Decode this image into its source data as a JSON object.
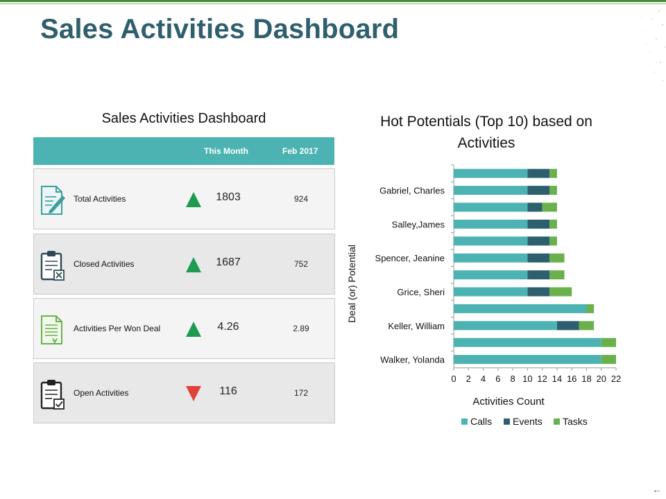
{
  "page_title": "Sales Activities Dashboard",
  "table": {
    "title": "Sales Activities Dashboard",
    "col_this_month": "This Month",
    "col_prev": "Feb 2017",
    "rows": [
      {
        "label": "Total Activities",
        "value": "1803",
        "prev": "924",
        "trend": "up",
        "icon": "document-pen-icon"
      },
      {
        "label": "Closed Activities",
        "value": "1687",
        "prev": "752",
        "trend": "up",
        "icon": "clipboard-x-icon"
      },
      {
        "label": "Activities Per Won Deal",
        "value": "4.26",
        "prev": "2.89",
        "trend": "up",
        "icon": "document-currency-icon"
      },
      {
        "label": "Open Activities",
        "value": "116",
        "prev": "172",
        "trend": "down",
        "icon": "clipboard-check-icon"
      }
    ]
  },
  "colors": {
    "header": "#4db3b2",
    "calls": "#4db3b2",
    "events": "#2e5f6e",
    "tasks": "#6ab04c",
    "up": "#1e9b50",
    "down": "#e0413b",
    "title": "#2f5f6e"
  },
  "chart_data": {
    "type": "bar",
    "orientation": "horizontal",
    "stacked": true,
    "title": "Hot Potentials (Top 10) based on Activities",
    "xlabel": "Activities Count",
    "ylabel": "Deal (or) Potential",
    "xlim": [
      0,
      22
    ],
    "xticks": [
      0,
      2,
      4,
      6,
      8,
      10,
      12,
      14,
      16,
      18,
      20,
      22
    ],
    "categories": [
      "",
      "Gabriel, Charles",
      "",
      "Salley,James",
      "",
      "Spencer, Jeanine",
      "",
      "Grice, Sheri",
      "",
      "Keller, William",
      "",
      "Walker, Yolanda"
    ],
    "series": [
      {
        "name": "Calls",
        "values": [
          10,
          10,
          10,
          10,
          10,
          10,
          10,
          10,
          18,
          14,
          20,
          20
        ]
      },
      {
        "name": "Events",
        "values": [
          3,
          3,
          2,
          3,
          3,
          3,
          3,
          3,
          0,
          3,
          0,
          0
        ]
      },
      {
        "name": "Tasks",
        "values": [
          1,
          1,
          2,
          1,
          1,
          2,
          2,
          3,
          1,
          2,
          2,
          2
        ]
      }
    ],
    "legend": [
      "Calls",
      "Events",
      "Tasks"
    ],
    "legend_position": "bottom"
  }
}
